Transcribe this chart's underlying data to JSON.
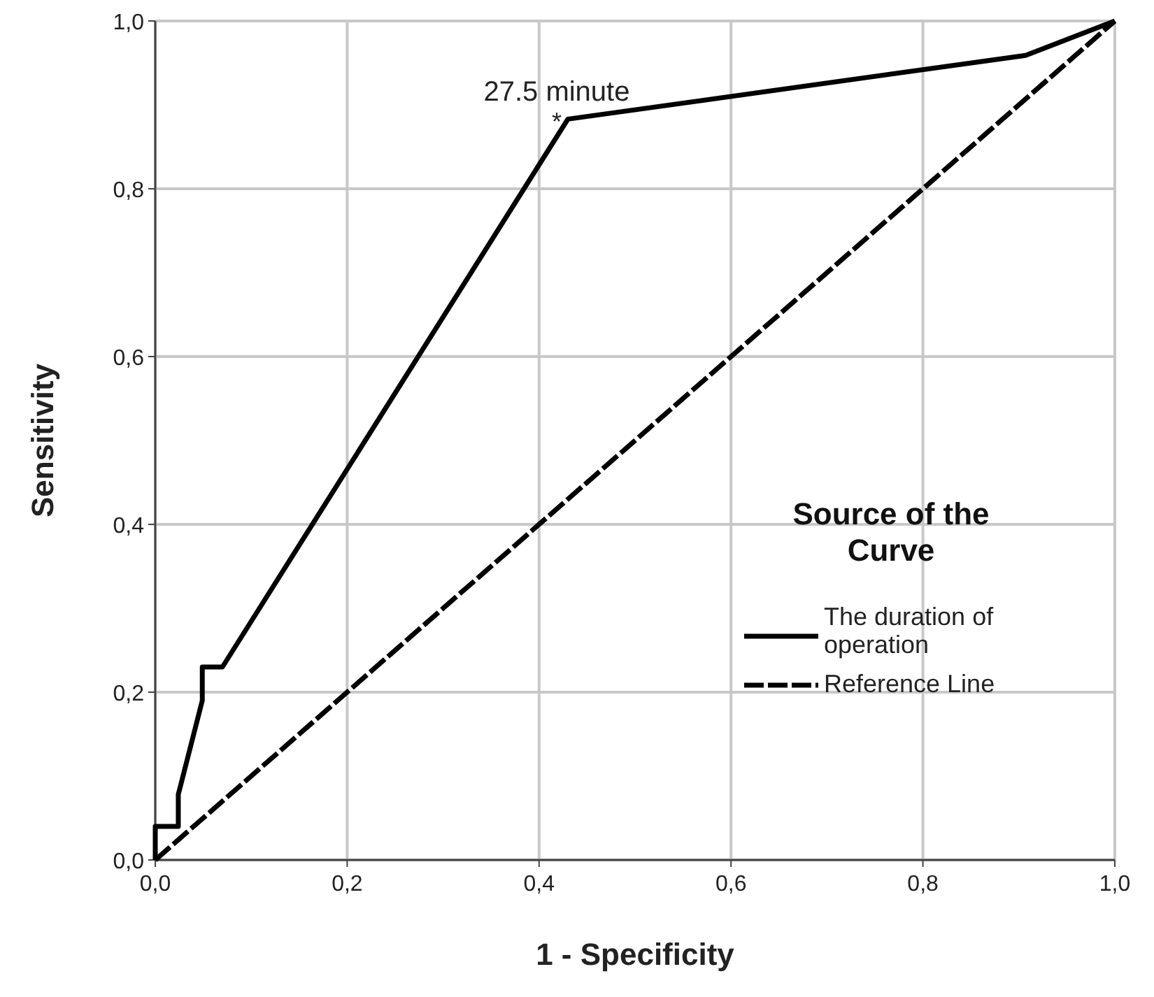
{
  "chart_data": {
    "type": "line",
    "xlabel": "1 - Specificity",
    "ylabel": "Sensitivity",
    "legend_title": "Source of the Curve",
    "legend": "right",
    "grid": true,
    "xlim": [
      0,
      1
    ],
    "ylim": [
      0,
      1
    ],
    "xticks": [
      {
        "value": 0,
        "label": "0,0"
      },
      {
        "value": 0.2,
        "label": "0,2"
      },
      {
        "value": 0.4,
        "label": "0,4"
      },
      {
        "value": 0.6,
        "label": "0,6"
      },
      {
        "value": 0.8,
        "label": "0,8"
      },
      {
        "value": 1,
        "label": "1,0"
      }
    ],
    "yticks": [
      {
        "value": 0,
        "label": "0,0"
      },
      {
        "value": 0.2,
        "label": "0,2"
      },
      {
        "value": 0.4,
        "label": "0,4"
      },
      {
        "value": 0.6,
        "label": "0,6"
      },
      {
        "value": 0.8,
        "label": "0,8"
      },
      {
        "value": 1,
        "label": "1,0"
      }
    ],
    "series": [
      {
        "name": "The duration of operation",
        "color": "#000000",
        "line_style": "solid",
        "x": [
          0,
          0,
          0.024,
          0.024,
          0.049,
          0.049,
          0.07,
          0.43,
          0.907,
          1
        ],
        "values": [
          0,
          0.04,
          0.04,
          0.078,
          0.19,
          0.23,
          0.23,
          0.883,
          0.959,
          1
        ]
      },
      {
        "name": "Reference Line",
        "color": "#000000",
        "line_style": "dashed",
        "x": [
          0,
          1
        ],
        "values": [
          0,
          1
        ]
      }
    ],
    "annotations": [
      {
        "text": "27.5 minute",
        "x": 0.43,
        "y": 0.883
      },
      {
        "text": "*",
        "x": 0.43,
        "y": 0.883
      }
    ]
  }
}
